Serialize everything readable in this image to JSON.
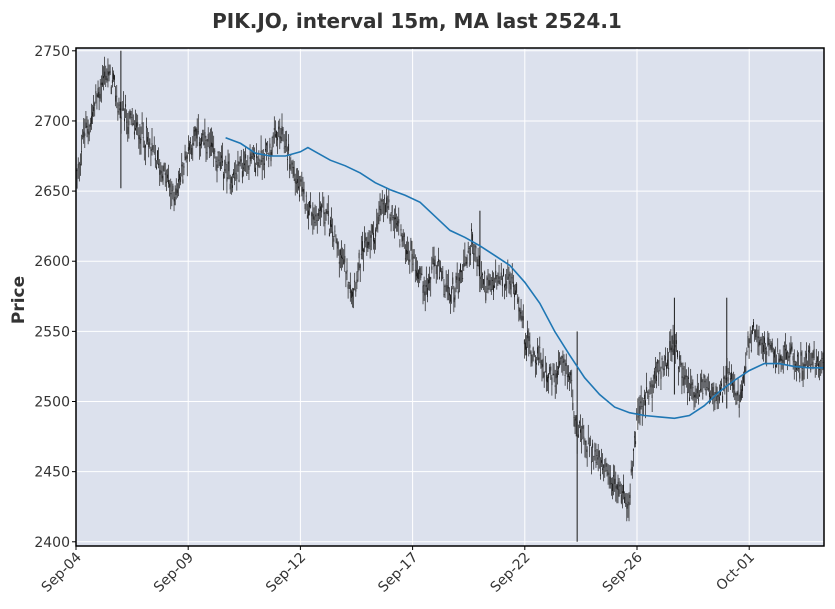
{
  "chart_data": {
    "type": "candlestick",
    "title": "PIK.JO, interval 15m, MA last 2524.1",
    "xlabel": "",
    "ylabel": "Price",
    "ylim": [
      2397,
      2752
    ],
    "xlim": [
      0,
      100
    ],
    "grid": true,
    "yticks": [
      2400,
      2450,
      2500,
      2550,
      2600,
      2650,
      2700,
      2750
    ],
    "xticks": [
      {
        "label": "Sep-04",
        "pos": 0
      },
      {
        "label": "Sep-09",
        "pos": 15
      },
      {
        "label": "Sep-12",
        "pos": 30
      },
      {
        "label": "Sep-17",
        "pos": 45
      },
      {
        "label": "Sep-22",
        "pos": 60
      },
      {
        "label": "Sep-26",
        "pos": 75
      },
      {
        "label": "Oct-01",
        "pos": 90
      }
    ],
    "price_path": [
      [
        0,
        2655
      ],
      [
        1,
        2690
      ],
      [
        2,
        2700
      ],
      [
        3,
        2720
      ],
      [
        4,
        2735
      ],
      [
        5,
        2725
      ],
      [
        6,
        2705
      ],
      [
        7,
        2700
      ],
      [
        8,
        2695
      ],
      [
        9,
        2690
      ],
      [
        10,
        2680
      ],
      [
        11,
        2670
      ],
      [
        12,
        2660
      ],
      [
        13,
        2645
      ],
      [
        14,
        2660
      ],
      [
        15,
        2680
      ],
      [
        16,
        2690
      ],
      [
        17,
        2685
      ],
      [
        18,
        2680
      ],
      [
        19,
        2670
      ],
      [
        20,
        2665
      ],
      [
        21,
        2660
      ],
      [
        22,
        2668
      ],
      [
        23,
        2672
      ],
      [
        24,
        2670
      ],
      [
        25,
        2675
      ],
      [
        26,
        2680
      ],
      [
        27,
        2690
      ],
      [
        28,
        2685
      ],
      [
        29,
        2665
      ],
      [
        30,
        2650
      ],
      [
        31,
        2640
      ],
      [
        32,
        2630
      ],
      [
        33,
        2640
      ],
      [
        34,
        2625
      ],
      [
        35,
        2610
      ],
      [
        36,
        2595
      ],
      [
        37,
        2580
      ],
      [
        38,
        2600
      ],
      [
        39,
        2615
      ],
      [
        40,
        2620
      ],
      [
        41,
        2640
      ],
      [
        42,
        2635
      ],
      [
        43,
        2625
      ],
      [
        44,
        2610
      ],
      [
        45,
        2605
      ],
      [
        46,
        2590
      ],
      [
        47,
        2580
      ],
      [
        48,
        2600
      ],
      [
        49,
        2585
      ],
      [
        50,
        2575
      ],
      [
        51,
        2585
      ],
      [
        52,
        2600
      ],
      [
        53,
        2615
      ],
      [
        54,
        2590
      ],
      [
        55,
        2580
      ],
      [
        56,
        2585
      ],
      [
        57,
        2585
      ],
      [
        58,
        2585
      ],
      [
        59,
        2580
      ],
      [
        60,
        2545
      ],
      [
        61,
        2535
      ],
      [
        62,
        2530
      ],
      [
        63,
        2520
      ],
      [
        64,
        2515
      ],
      [
        65,
        2525
      ],
      [
        66,
        2520
      ],
      [
        67,
        2480
      ],
      [
        68,
        2470
      ],
      [
        69,
        2465
      ],
      [
        70,
        2455
      ],
      [
        71,
        2445
      ],
      [
        72,
        2440
      ],
      [
        73,
        2435
      ],
      [
        74,
        2430
      ],
      [
        75,
        2490
      ],
      [
        76,
        2500
      ],
      [
        77,
        2510
      ],
      [
        78,
        2525
      ],
      [
        79,
        2530
      ],
      [
        80,
        2540
      ],
      [
        81,
        2520
      ],
      [
        82,
        2510
      ],
      [
        83,
        2505
      ],
      [
        84,
        2515
      ],
      [
        85,
        2505
      ],
      [
        86,
        2500
      ],
      [
        87,
        2520
      ],
      [
        88,
        2505
      ],
      [
        89,
        2500
      ],
      [
        90,
        2545
      ],
      [
        91,
        2550
      ],
      [
        92,
        2540
      ],
      [
        93,
        2535
      ],
      [
        94,
        2530
      ],
      [
        95,
        2535
      ],
      [
        96,
        2530
      ],
      [
        97,
        2525
      ],
      [
        98,
        2530
      ],
      [
        99,
        2530
      ],
      [
        100,
        2525
      ]
    ],
    "wicks": [
      {
        "x": 6,
        "low": 2652,
        "high": 2750
      },
      {
        "x": 67,
        "low": 2400,
        "high": 2550
      },
      {
        "x": 54,
        "low": 2578,
        "high": 2636
      },
      {
        "x": 87,
        "low": 2495,
        "high": 2574
      },
      {
        "x": 80,
        "low": 2505,
        "high": 2574
      }
    ],
    "ma_path": [
      [
        20,
        2688
      ],
      [
        22,
        2684
      ],
      [
        24,
        2677
      ],
      [
        26,
        2675
      ],
      [
        28,
        2675
      ],
      [
        30,
        2678
      ],
      [
        31,
        2681
      ],
      [
        32,
        2678
      ],
      [
        34,
        2672
      ],
      [
        36,
        2668
      ],
      [
        38,
        2663
      ],
      [
        40,
        2656
      ],
      [
        42,
        2651
      ],
      [
        44,
        2647
      ],
      [
        46,
        2642
      ],
      [
        48,
        2632
      ],
      [
        50,
        2622
      ],
      [
        52,
        2617
      ],
      [
        54,
        2611
      ],
      [
        56,
        2604
      ],
      [
        58,
        2597
      ],
      [
        60,
        2585
      ],
      [
        62,
        2570
      ],
      [
        64,
        2550
      ],
      [
        66,
        2533
      ],
      [
        68,
        2517
      ],
      [
        70,
        2505
      ],
      [
        72,
        2496
      ],
      [
        74,
        2492
      ],
      [
        76,
        2490
      ],
      [
        78,
        2489
      ],
      [
        80,
        2488
      ],
      [
        82,
        2490
      ],
      [
        84,
        2497
      ],
      [
        86,
        2507
      ],
      [
        88,
        2515
      ],
      [
        90,
        2522
      ],
      [
        92,
        2527
      ],
      [
        94,
        2527
      ],
      [
        96,
        2525
      ],
      [
        98,
        2524
      ],
      [
        100,
        2524
      ]
    ],
    "colors": {
      "price": "#1a1a1a",
      "ma": "#1f77b4",
      "plot_bg": "#dce1ed",
      "grid": "#ffffff",
      "frame": "#000000"
    }
  }
}
